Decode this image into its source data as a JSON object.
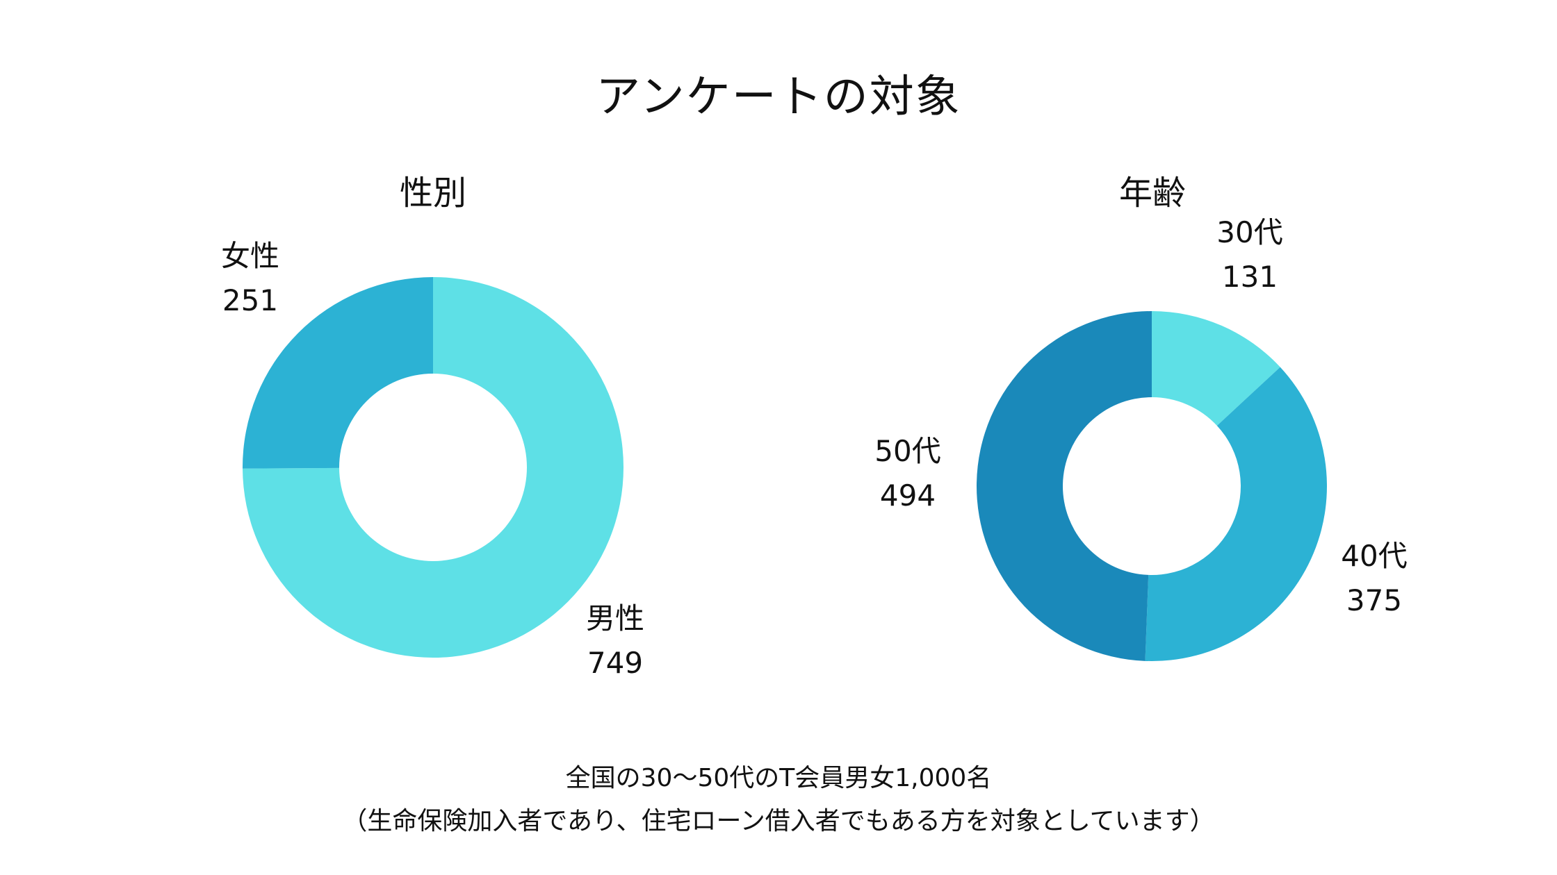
{
  "title": "アンケートの対象",
  "chart_data": [
    {
      "type": "pie",
      "variant": "donut",
      "title": "性別",
      "categories": [
        "男性",
        "女性"
      ],
      "values": [
        749,
        251
      ],
      "colors": [
        "#5EE0E6",
        "#2CB2D4"
      ]
    },
    {
      "type": "pie",
      "variant": "donut",
      "title": "年齢",
      "categories": [
        "30代",
        "40代",
        "50代"
      ],
      "values": [
        131,
        375,
        494
      ],
      "colors": [
        "#5EE0E6",
        "#2CB2D4",
        "#1A89BA"
      ]
    }
  ],
  "footnote": {
    "line1": "全国の30〜50代のT会員男女1,000名",
    "line2": "（生命保険加入者であり、住宅ローン借入者でもある方を対象としています）"
  }
}
